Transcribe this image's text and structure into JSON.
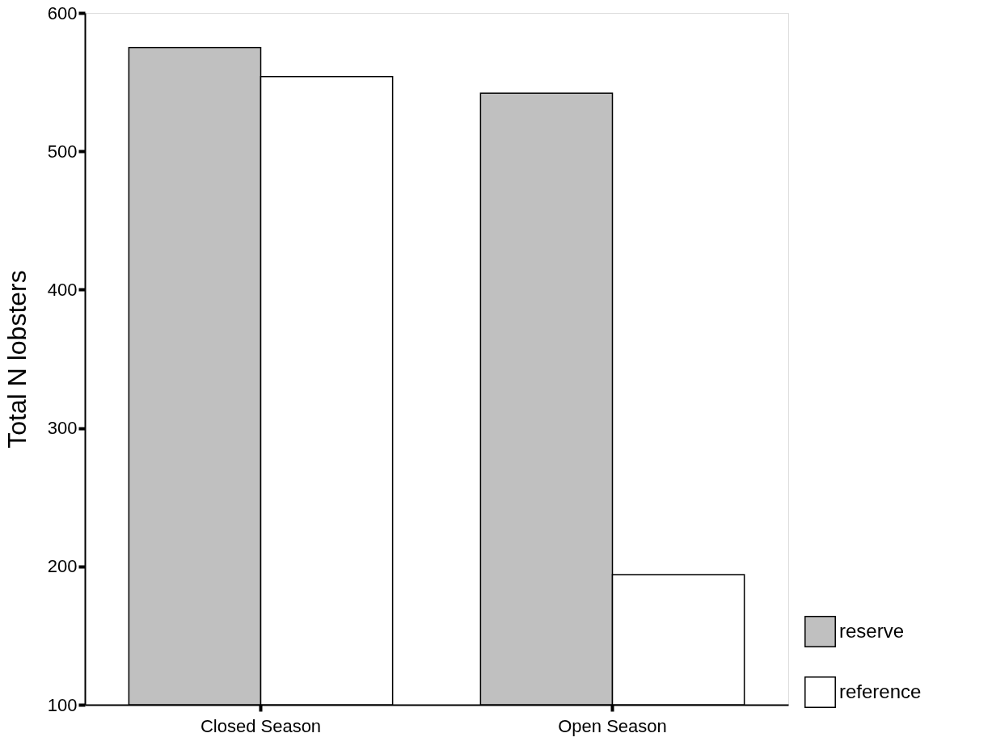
{
  "chart_data": {
    "type": "bar",
    "ylabel": "Total N lobsters",
    "categories": [
      "Closed Season",
      "Open Season"
    ],
    "series": [
      {
        "name": "reserve",
        "color": "#c0c0c0",
        "values": [
          575,
          542
        ]
      },
      {
        "name": "reference",
        "color": "#ffffff",
        "values": [
          554,
          194
        ]
      }
    ],
    "ylim": [
      100,
      600
    ],
    "yticks": [
      100,
      200,
      300,
      400,
      500,
      600
    ],
    "grid": false,
    "legend": "bottom right"
  }
}
